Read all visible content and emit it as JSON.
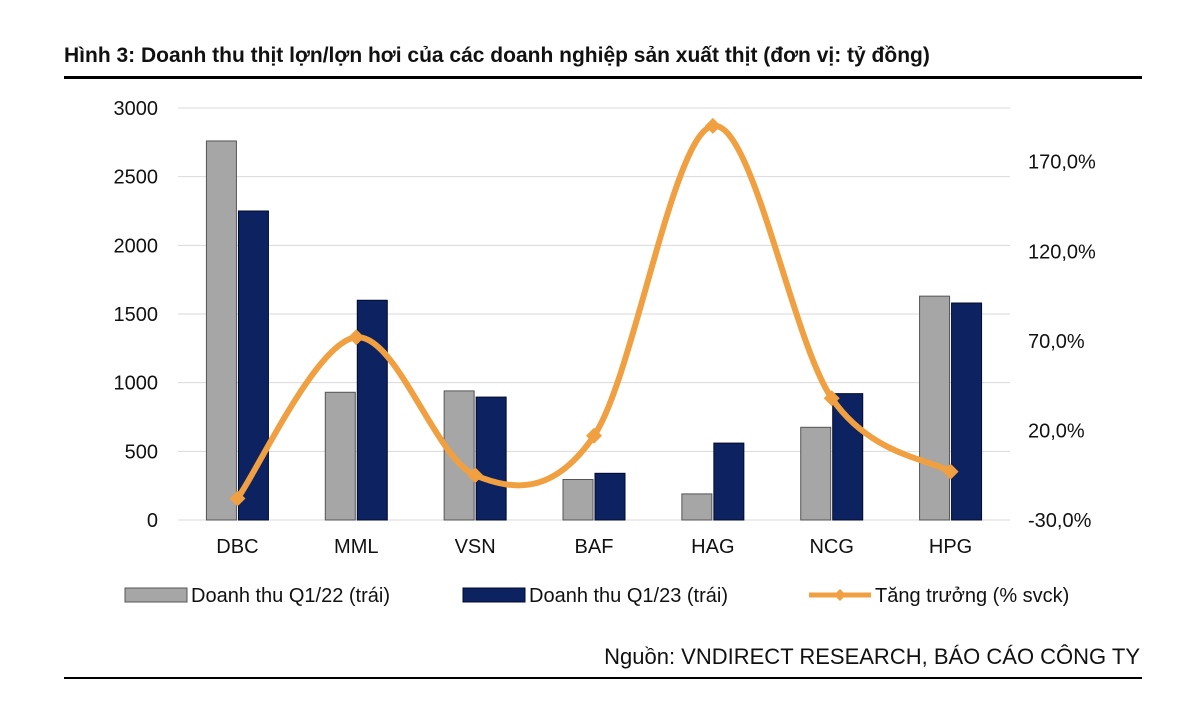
{
  "title": "Hình 3: Doanh thu thịt lợn/lợn hơi của các doanh nghiệp sản xuất thịt (đơn vị: tỷ đồng)",
  "source": "Nguồn: VNDIRECT RESEARCH, BÁO CÁO CÔNG TY",
  "chart_data": {
    "type": "bar",
    "categories": [
      "DBC",
      "MML",
      "VSN",
      "BAF",
      "HAG",
      "NCG",
      "HPG"
    ],
    "series": [
      {
        "name": "Doanh thu Q1/22 (trái)",
        "type": "bar",
        "axis": "left",
        "color": "#a6a6a6",
        "values": [
          2760,
          930,
          940,
          295,
          190,
          675,
          1630
        ]
      },
      {
        "name": "Doanh thu Q1/23 (trái)",
        "type": "bar",
        "axis": "left",
        "color": "#0d2260",
        "values": [
          2250,
          1600,
          895,
          340,
          560,
          920,
          1580
        ]
      },
      {
        "name": "Tăng trưởng (% svck)",
        "type": "line",
        "axis": "right",
        "color": "#f0a040",
        "values": [
          -18,
          72,
          -5,
          17,
          190,
          38,
          -3
        ]
      }
    ],
    "y_left": {
      "ylim": [
        0,
        3000
      ],
      "ticks": [
        "0",
        "500",
        "1000",
        "1500",
        "2000",
        "2500",
        "3000"
      ]
    },
    "y_right": {
      "ylim": [
        -30,
        200
      ],
      "ticks": [
        "-30,0%",
        "20,0%",
        "70,0%",
        "120,0%",
        "170,0%"
      ]
    },
    "grid": true,
    "legend_position": "bottom"
  }
}
